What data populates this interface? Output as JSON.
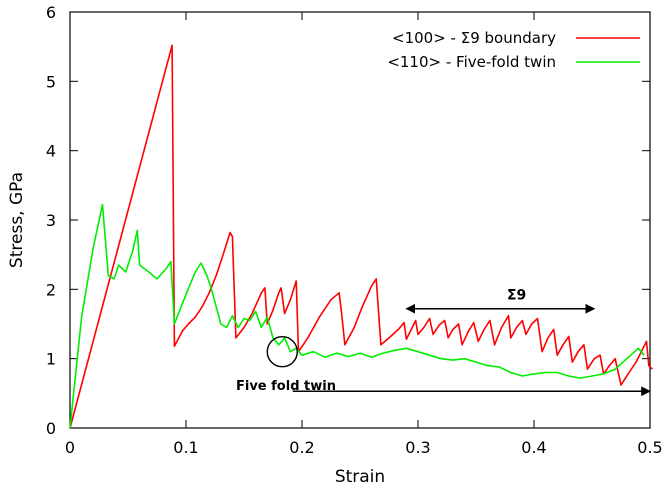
{
  "chart_data": {
    "type": "line",
    "xlabel": "Strain",
    "ylabel": "Stress, GPa",
    "xlim": [
      0,
      0.5
    ],
    "ylim": [
      0,
      6
    ],
    "x_ticks": [
      "0",
      "0.1",
      "0.2",
      "0.3",
      "0.4",
      "0.5"
    ],
    "y_ticks": [
      "0",
      "1",
      "2",
      "3",
      "4",
      "5",
      "6"
    ],
    "grid": false,
    "legend_position": "top-right",
    "series": [
      {
        "name": "<100> - Σ9 boundary",
        "color": "#ff0000",
        "points": [
          [
            0,
            0
          ],
          [
            0.088,
            5.52
          ],
          [
            0.09,
            1.18
          ],
          [
            0.097,
            1.4
          ],
          [
            0.102,
            1.5
          ],
          [
            0.108,
            1.6
          ],
          [
            0.114,
            1.75
          ],
          [
            0.12,
            1.95
          ],
          [
            0.126,
            2.2
          ],
          [
            0.132,
            2.5
          ],
          [
            0.138,
            2.82
          ],
          [
            0.14,
            2.76
          ],
          [
            0.143,
            1.3
          ],
          [
            0.15,
            1.45
          ],
          [
            0.157,
            1.65
          ],
          [
            0.165,
            1.95
          ],
          [
            0.168,
            2.02
          ],
          [
            0.17,
            1.5
          ],
          [
            0.175,
            1.7
          ],
          [
            0.18,
            1.95
          ],
          [
            0.182,
            2.02
          ],
          [
            0.185,
            1.65
          ],
          [
            0.19,
            1.85
          ],
          [
            0.195,
            2.12
          ],
          [
            0.197,
            1.1
          ],
          [
            0.205,
            1.3
          ],
          [
            0.215,
            1.6
          ],
          [
            0.225,
            1.85
          ],
          [
            0.232,
            1.95
          ],
          [
            0.234,
            1.68
          ],
          [
            0.237,
            1.2
          ],
          [
            0.245,
            1.45
          ],
          [
            0.252,
            1.75
          ],
          [
            0.26,
            2.05
          ],
          [
            0.264,
            2.15
          ],
          [
            0.268,
            1.2
          ],
          [
            0.275,
            1.3
          ],
          [
            0.283,
            1.42
          ],
          [
            0.288,
            1.52
          ],
          [
            0.29,
            1.28
          ],
          [
            0.295,
            1.45
          ],
          [
            0.298,
            1.55
          ],
          [
            0.3,
            1.35
          ],
          [
            0.305,
            1.45
          ],
          [
            0.31,
            1.58
          ],
          [
            0.313,
            1.35
          ],
          [
            0.318,
            1.48
          ],
          [
            0.323,
            1.55
          ],
          [
            0.326,
            1.3
          ],
          [
            0.33,
            1.42
          ],
          [
            0.335,
            1.5
          ],
          [
            0.338,
            1.2
          ],
          [
            0.343,
            1.38
          ],
          [
            0.348,
            1.52
          ],
          [
            0.352,
            1.25
          ],
          [
            0.357,
            1.42
          ],
          [
            0.362,
            1.55
          ],
          [
            0.366,
            1.2
          ],
          [
            0.372,
            1.45
          ],
          [
            0.378,
            1.62
          ],
          [
            0.38,
            1.3
          ],
          [
            0.385,
            1.45
          ],
          [
            0.39,
            1.55
          ],
          [
            0.393,
            1.35
          ],
          [
            0.398,
            1.5
          ],
          [
            0.403,
            1.58
          ],
          [
            0.407,
            1.1
          ],
          [
            0.412,
            1.3
          ],
          [
            0.417,
            1.42
          ],
          [
            0.42,
            1.05
          ],
          [
            0.425,
            1.2
          ],
          [
            0.43,
            1.32
          ],
          [
            0.433,
            0.95
          ],
          [
            0.438,
            1.1
          ],
          [
            0.443,
            1.2
          ],
          [
            0.446,
            0.85
          ],
          [
            0.452,
            1.0
          ],
          [
            0.457,
            1.05
          ],
          [
            0.46,
            0.78
          ],
          [
            0.465,
            0.9
          ],
          [
            0.47,
            1.0
          ],
          [
            0.475,
            0.62
          ],
          [
            0.482,
            0.8
          ],
          [
            0.488,
            0.95
          ],
          [
            0.494,
            1.15
          ],
          [
            0.497,
            1.25
          ],
          [
            0.499,
            0.9
          ],
          [
            0.502,
            0.85
          ]
        ]
      },
      {
        "name": "<110> - Five-fold twin",
        "color": "#00ee00",
        "points": [
          [
            0,
            0
          ],
          [
            0.01,
            1.6
          ],
          [
            0.02,
            2.6
          ],
          [
            0.028,
            3.22
          ],
          [
            0.033,
            2.2
          ],
          [
            0.038,
            2.15
          ],
          [
            0.042,
            2.35
          ],
          [
            0.048,
            2.25
          ],
          [
            0.054,
            2.55
          ],
          [
            0.058,
            2.85
          ],
          [
            0.06,
            2.35
          ],
          [
            0.068,
            2.25
          ],
          [
            0.075,
            2.15
          ],
          [
            0.083,
            2.3
          ],
          [
            0.087,
            2.4
          ],
          [
            0.09,
            1.5
          ],
          [
            0.097,
            1.8
          ],
          [
            0.103,
            2.05
          ],
          [
            0.108,
            2.25
          ],
          [
            0.113,
            2.38
          ],
          [
            0.118,
            2.2
          ],
          [
            0.122,
            2.0
          ],
          [
            0.126,
            1.75
          ],
          [
            0.13,
            1.5
          ],
          [
            0.135,
            1.45
          ],
          [
            0.14,
            1.62
          ],
          [
            0.145,
            1.45
          ],
          [
            0.15,
            1.58
          ],
          [
            0.155,
            1.55
          ],
          [
            0.16,
            1.68
          ],
          [
            0.165,
            1.45
          ],
          [
            0.17,
            1.6
          ],
          [
            0.175,
            1.3
          ],
          [
            0.18,
            1.2
          ],
          [
            0.185,
            1.3
          ],
          [
            0.19,
            1.1
          ],
          [
            0.195,
            1.15
          ],
          [
            0.2,
            1.05
          ],
          [
            0.21,
            1.1
          ],
          [
            0.22,
            1.02
          ],
          [
            0.23,
            1.08
          ],
          [
            0.24,
            1.03
          ],
          [
            0.25,
            1.08
          ],
          [
            0.26,
            1.02
          ],
          [
            0.27,
            1.08
          ],
          [
            0.28,
            1.12
          ],
          [
            0.29,
            1.15
          ],
          [
            0.3,
            1.1
          ],
          [
            0.31,
            1.05
          ],
          [
            0.32,
            1.0
          ],
          [
            0.33,
            0.98
          ],
          [
            0.34,
            1.0
          ],
          [
            0.35,
            0.95
          ],
          [
            0.36,
            0.9
          ],
          [
            0.37,
            0.88
          ],
          [
            0.38,
            0.8
          ],
          [
            0.39,
            0.75
          ],
          [
            0.4,
            0.78
          ],
          [
            0.41,
            0.8
          ],
          [
            0.42,
            0.8
          ],
          [
            0.43,
            0.75
          ],
          [
            0.44,
            0.72
          ],
          [
            0.45,
            0.75
          ],
          [
            0.46,
            0.78
          ],
          [
            0.47,
            0.85
          ],
          [
            0.48,
            1.0
          ],
          [
            0.49,
            1.15
          ],
          [
            0.495,
            1.05
          ]
        ]
      }
    ],
    "annotations": {
      "five_fold_twin": "Five fold twin",
      "sigma9": "Σ9"
    }
  }
}
